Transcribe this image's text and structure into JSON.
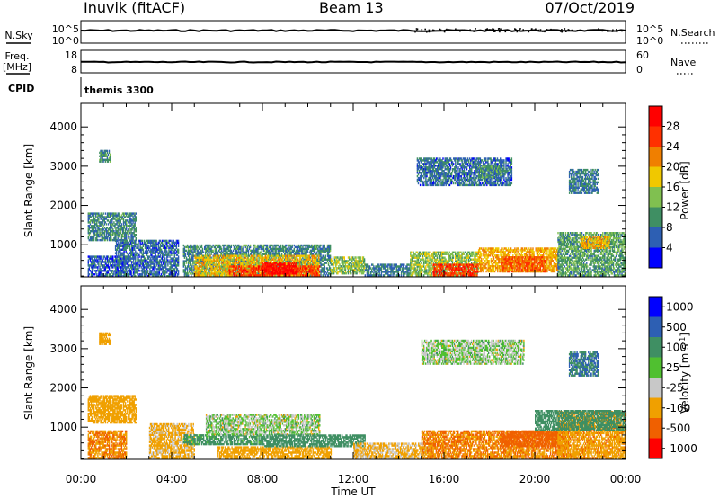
{
  "header": {
    "station": "Inuvik (fitACF)",
    "beam": "Beam 13",
    "date": "07/Oct/2019"
  },
  "strip1": {
    "left_label": "N.Sky",
    "left_ticks": [
      "10^5",
      "10^0"
    ],
    "right_ticks": [
      "10^5",
      "10^0"
    ],
    "right_label": "N.Search"
  },
  "strip2": {
    "left_label_top": "Freq.",
    "left_label_bottom": "[MHz]",
    "left_ticks": [
      "18",
      "8"
    ],
    "right_ticks": [
      "60",
      "0"
    ],
    "right_label": "Nave"
  },
  "cpid": {
    "label": "CPID",
    "value": "themis 3300"
  },
  "xaxis": {
    "ticks": [
      "00:00",
      "04:00",
      "08:00",
      "12:00",
      "16:00",
      "20:00",
      "00:00"
    ],
    "label": "Time UT"
  },
  "colors": {
    "power": [
      "#0000ff",
      "#2d5fb3",
      "#3f8f63",
      "#80c050",
      "#f0c800",
      "#f07f00",
      "#ff3000",
      "#ff0000"
    ],
    "velocity": [
      "#ff0000",
      "#f06000",
      "#f0a000",
      "#c8c8c8",
      "#50c030",
      "#3f8f63",
      "#2d5fb3",
      "#0000ff"
    ]
  },
  "chart_data": [
    {
      "type": "heatmap",
      "title": "",
      "xlabel": "Time UT",
      "ylabel": "Slant Range [km]",
      "xlim": [
        "00:00",
        "00:00"
      ],
      "ylim": [
        180,
        4600
      ],
      "yticks": [
        1000,
        2000,
        3000,
        4000
      ],
      "colorbar": {
        "label": "Power [dB]",
        "ticks": [
          4,
          8,
          12,
          16,
          20,
          24,
          28
        ],
        "range": [
          0,
          32
        ]
      },
      "regions": [
        {
          "t": [
            0.3,
            2.0
          ],
          "r": [
            180,
            700
          ],
          "v": 6
        },
        {
          "t": [
            0.3,
            2.4
          ],
          "r": [
            1100,
            1800
          ],
          "v": 9
        },
        {
          "t": [
            0.8,
            1.3
          ],
          "r": [
            3100,
            3400
          ],
          "v": 10
        },
        {
          "t": [
            1.5,
            4.3
          ],
          "r": [
            180,
            1100
          ],
          "v": 7
        },
        {
          "t": [
            4.5,
            11.0
          ],
          "r": [
            200,
            1000
          ],
          "v": 9
        },
        {
          "t": [
            5.0,
            10.5
          ],
          "r": [
            200,
            700
          ],
          "v": 18
        },
        {
          "t": [
            6.5,
            10.5
          ],
          "r": [
            200,
            450
          ],
          "v": 26
        },
        {
          "t": [
            8.0,
            9.5
          ],
          "r": [
            250,
            550
          ],
          "v": 30
        },
        {
          "t": [
            11.0,
            12.5
          ],
          "r": [
            250,
            700
          ],
          "v": 14
        },
        {
          "t": [
            12.5,
            14.5
          ],
          "r": [
            200,
            500
          ],
          "v": 8
        },
        {
          "t": [
            14.5,
            17.5
          ],
          "r": [
            200,
            800
          ],
          "v": 14
        },
        {
          "t": [
            15.5,
            17.5
          ],
          "r": [
            200,
            500
          ],
          "v": 26
        },
        {
          "t": [
            17.5,
            21.0
          ],
          "r": [
            300,
            900
          ],
          "v": 20
        },
        {
          "t": [
            18.5,
            20.5
          ],
          "r": [
            300,
            700
          ],
          "v": 24
        },
        {
          "t": [
            21.0,
            24.0
          ],
          "r": [
            200,
            1300
          ],
          "v": 11
        },
        {
          "t": [
            22.0,
            23.3
          ],
          "r": [
            900,
            1200
          ],
          "v": 20
        },
        {
          "t": [
            14.8,
            19.0
          ],
          "r": [
            2500,
            3200
          ],
          "v": 7
        },
        {
          "t": [
            17.5,
            18.5
          ],
          "r": [
            2700,
            3000
          ],
          "v": 10
        },
        {
          "t": [
            21.5,
            22.8
          ],
          "r": [
            2300,
            2900
          ],
          "v": 8
        }
      ]
    },
    {
      "type": "heatmap",
      "title": "",
      "xlabel": "Time UT",
      "ylabel": "Slant Range [km]",
      "xlim": [
        "00:00",
        "00:00"
      ],
      "ylim": [
        180,
        4600
      ],
      "yticks": [
        1000,
        2000,
        3000,
        4000
      ],
      "colorbar": {
        "label": "Velocity [m s^-1]",
        "ticks": [
          -1000,
          -500,
          -100,
          -25,
          25,
          100,
          500,
          1000
        ]
      },
      "regions": [
        {
          "t": [
            0.3,
            2.4
          ],
          "r": [
            1100,
            1800
          ],
          "v": -200
        },
        {
          "t": [
            0.3,
            2.0
          ],
          "r": [
            200,
            900
          ],
          "v": -300
        },
        {
          "t": [
            0.8,
            1.3
          ],
          "r": [
            3100,
            3400
          ],
          "v": -200
        },
        {
          "t": [
            3.0,
            5.0
          ],
          "r": [
            200,
            1100
          ],
          "v": -100
        },
        {
          "t": [
            4.5,
            8.0
          ],
          "r": [
            550,
            800
          ],
          "v": 120
        },
        {
          "t": [
            5.5,
            10.5
          ],
          "r": [
            800,
            1300
          ],
          "v": 0
        },
        {
          "t": [
            6.0,
            11.0
          ],
          "r": [
            200,
            500
          ],
          "v": -150
        },
        {
          "t": [
            8.0,
            12.5
          ],
          "r": [
            500,
            800
          ],
          "v": 200
        },
        {
          "t": [
            12.0,
            15.5
          ],
          "r": [
            200,
            600
          ],
          "v": -80
        },
        {
          "t": [
            15.0,
            21.5
          ],
          "r": [
            200,
            900
          ],
          "v": -300
        },
        {
          "t": [
            18.5,
            21.0
          ],
          "r": [
            500,
            900
          ],
          "v": -600
        },
        {
          "t": [
            21.0,
            24.0
          ],
          "r": [
            200,
            1400
          ],
          "v": -250
        },
        {
          "t": [
            15.0,
            19.5
          ],
          "r": [
            2600,
            3200
          ],
          "v": 0
        },
        {
          "t": [
            21.5,
            22.8
          ],
          "r": [
            2300,
            2900
          ],
          "v": 300
        },
        {
          "t": [
            20.0,
            24.0
          ],
          "r": [
            900,
            1400
          ],
          "v": 150
        }
      ]
    }
  ]
}
